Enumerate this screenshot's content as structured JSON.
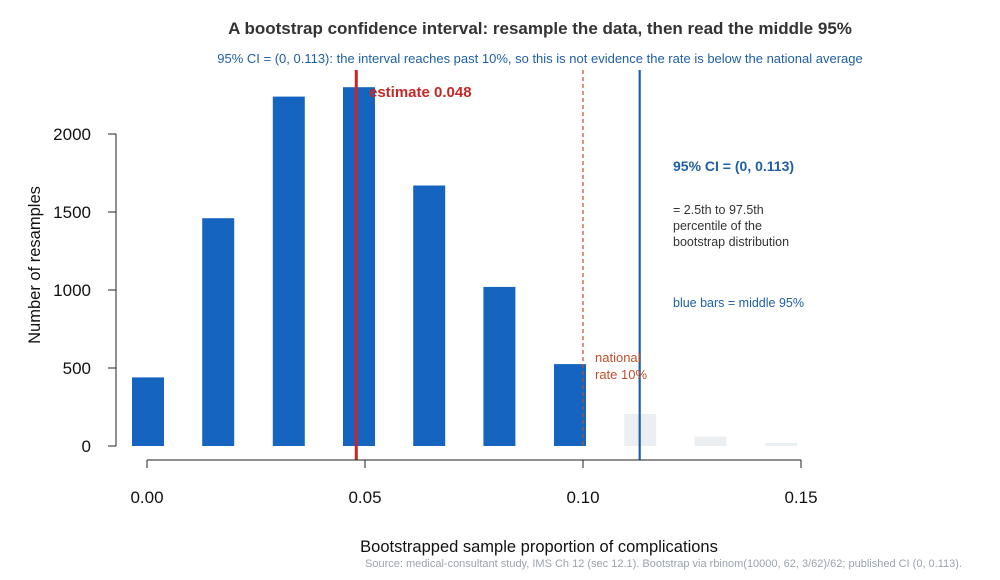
{
  "chart_data": {
    "type": "bar",
    "title": "A bootstrap confidence interval: resample the data, then read the middle 95%",
    "subtitle": "95% CI = (0, 0.113): the interval reaches past 10%, so this is not evidence the rate is below the national average",
    "xlabel": "Bootstrapped sample proportion of complications",
    "ylabel": "Number of resamples",
    "xlim": [
      0,
      0.15
    ],
    "ylim": [
      0,
      2300
    ],
    "x_ticks": [
      {
        "value": 0.0,
        "label": "0.00"
      },
      {
        "value": 0.05,
        "label": "0.05"
      },
      {
        "value": 0.1,
        "label": "0.10"
      },
      {
        "value": 0.15,
        "label": "0.15"
      }
    ],
    "y_ticks": [
      {
        "value": 0,
        "label": "0"
      },
      {
        "value": 500,
        "label": "500"
      },
      {
        "value": 1000,
        "label": "1000"
      },
      {
        "value": 1500,
        "label": "1500"
      },
      {
        "value": 2000,
        "label": "2000"
      }
    ],
    "bars": [
      {
        "x": 0.0,
        "count": 440,
        "in_ci": true
      },
      {
        "x": 0.0161,
        "count": 1460,
        "in_ci": true
      },
      {
        "x": 0.0323,
        "count": 2240,
        "in_ci": true
      },
      {
        "x": 0.0484,
        "count": 2300,
        "in_ci": true
      },
      {
        "x": 0.0645,
        "count": 1670,
        "in_ci": true
      },
      {
        "x": 0.0806,
        "count": 1020,
        "in_ci": true
      },
      {
        "x": 0.0968,
        "count": 525,
        "in_ci": true
      },
      {
        "x": 0.1129,
        "count": 205,
        "in_ci": false
      },
      {
        "x": 0.129,
        "count": 60,
        "in_ci": false
      },
      {
        "x": 0.1452,
        "count": 20,
        "in_ci": false
      }
    ],
    "estimate": {
      "value": 0.048,
      "label": "estimate 0.048"
    },
    "national_rate": {
      "value": 0.1,
      "label_lines": [
        "national",
        "rate 10%"
      ]
    },
    "ci_upper": 0.113,
    "annotations": {
      "ci_heading": "95% CI = (0, 0.113)",
      "ci_explain": [
        "= 2.5th to 97.5th",
        "percentile of the",
        "bootstrap distribution"
      ],
      "blue_note": "blue bars = middle 95%"
    },
    "source": "Source: medical-consultant study, IMS Ch 12 (sec 12.1). Bootstrap via rbinom(10000, 62, 3/62)/62; published CI (0, 0.113).",
    "colors": {
      "in_ci": "#1565c0",
      "out_ci": "#eceff2",
      "estimate": "#c62828",
      "national": "#c0502a",
      "ci_line": "#1f5fa6",
      "title": "#333333",
      "subtitle": "#1f5fa6",
      "source": "#9aa3ad"
    }
  }
}
